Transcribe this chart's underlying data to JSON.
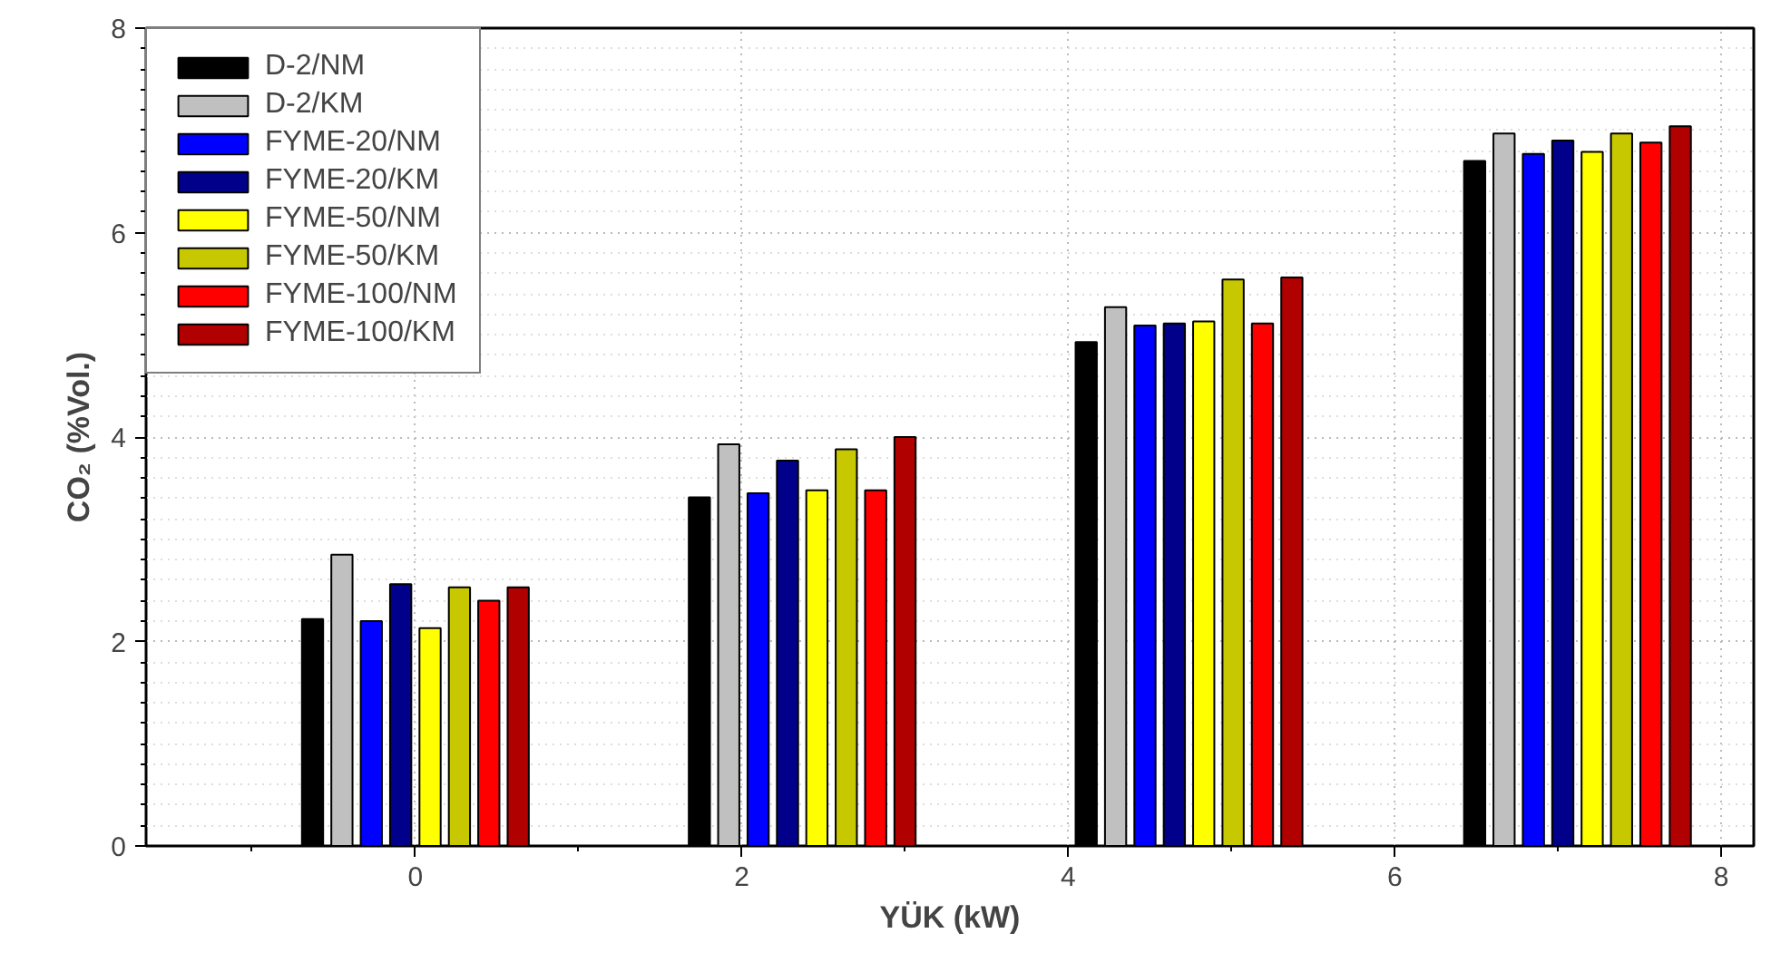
{
  "chart_data": {
    "type": "bar",
    "xlabel": "YÜK (kW)",
    "ylabel": "CO₂ (%Vol.)",
    "x": [
      0,
      2.37,
      4.74,
      7.12
    ],
    "xlim": [
      -1.65,
      8.2
    ],
    "ylim": [
      0,
      8
    ],
    "xticks": [
      0,
      2,
      4,
      6,
      8
    ],
    "yticks": [
      0,
      2,
      4,
      6,
      8
    ],
    "grid": true,
    "legend": "top left",
    "series": [
      {
        "name": "D-2/NM",
        "color": "#000000",
        "values": [
          2.22,
          3.41,
          4.93,
          6.7
        ]
      },
      {
        "name": "D-2/KM",
        "color": "#c0c0c0",
        "values": [
          2.85,
          3.93,
          5.27,
          6.97
        ]
      },
      {
        "name": "FYME-20/NM",
        "color": "#0000ff",
        "values": [
          2.2,
          3.45,
          5.09,
          6.77
        ]
      },
      {
        "name": "FYME-20/KM",
        "color": "#00008b",
        "values": [
          2.56,
          3.77,
          5.11,
          6.9
        ]
      },
      {
        "name": "FYME-50/NM",
        "color": "#ffff00",
        "values": [
          2.13,
          3.48,
          5.13,
          6.79
        ]
      },
      {
        "name": "FYME-50/KM",
        "color": "#c8c800",
        "values": [
          2.53,
          3.88,
          5.54,
          6.97
        ]
      },
      {
        "name": "FYME-100/NM",
        "color": "#ff0000",
        "values": [
          2.4,
          3.48,
          5.11,
          6.88
        ]
      },
      {
        "name": "FYME-100/KM",
        "color": "#b00000",
        "values": [
          2.53,
          4.0,
          5.56,
          7.04
        ]
      }
    ]
  }
}
